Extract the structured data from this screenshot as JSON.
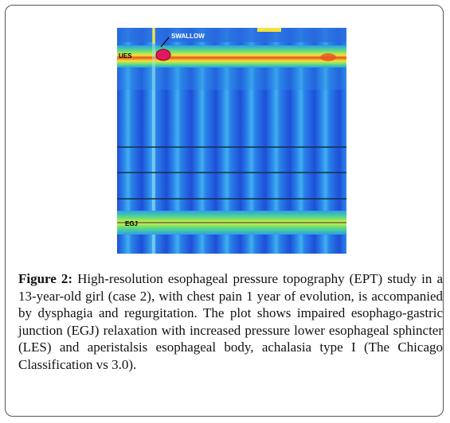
{
  "figure": {
    "image_labels": {
      "event": "SWALLOW",
      "upper": "UES",
      "lower": "EGJ"
    },
    "caption": {
      "label": "Figure 2:",
      "text": "High-resolution esophageal pressure topography (EPT) study in a 13-year-old girl (case 2), with chest pain 1 year of evolution, is accompanied by dysphagia and regurgitation. The plot shows impaired esophago-gastric junction (EGJ) relaxation with increased pressure lower esophageal sphincter (LES) and aperistalsis esophageal body, achalasia type I (The Chicago Classification vs 3.0)."
    }
  }
}
